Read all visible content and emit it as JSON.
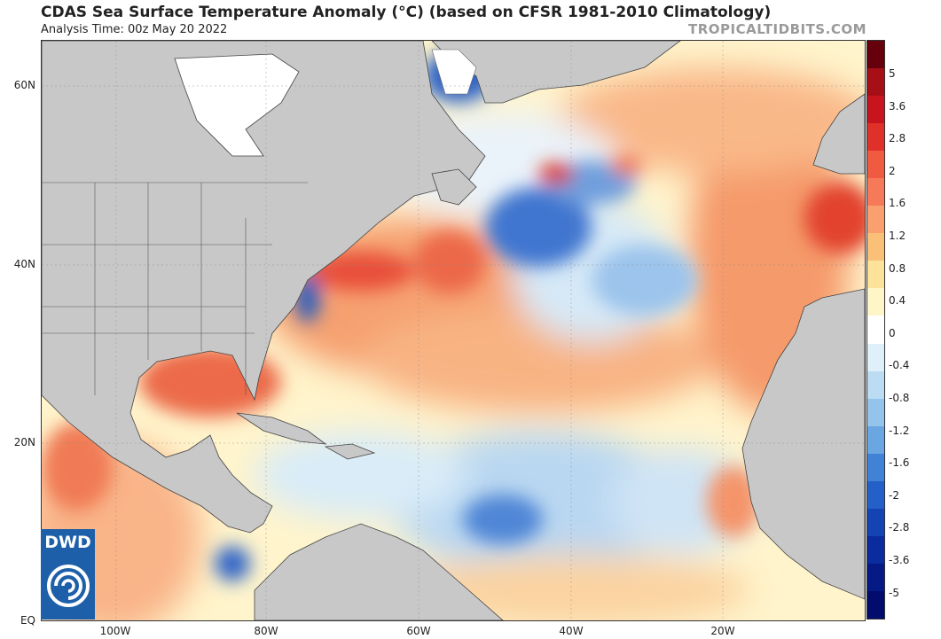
{
  "title": "CDAS Sea Surface Temperature Anomaly (°C) (based on CFSR 1981-2010 Climatology)",
  "subtitle": "Analysis Time: 00z May 20 2022",
  "brand": "TROPICALTIDBITS.COM",
  "logo": {
    "text": "DWD",
    "icon": "swirl-icon"
  },
  "lat_labels": [
    "60N",
    "40N",
    "20N",
    "EQ"
  ],
  "lon_labels": [
    "100W",
    "80W",
    "60W",
    "40W",
    "20W"
  ],
  "colorbar": {
    "labels": [
      "5",
      "3.6",
      "2.8",
      "2",
      "1.6",
      "1.2",
      "0.8",
      "0.4",
      "0",
      "-0.4",
      "-0.8",
      "-1.2",
      "-1.6",
      "-2",
      "-2.8",
      "-3.6",
      "-5"
    ],
    "colors": [
      "#67000d",
      "#a50f15",
      "#c8151d",
      "#e0302a",
      "#ef5a40",
      "#f67a5a",
      "#f9a06e",
      "#fbc078",
      "#fde29a",
      "#fff6c8",
      "#ffffff",
      "#dff0fb",
      "#bcdcf4",
      "#94c4ec",
      "#6aa6e2",
      "#4082d6",
      "#2460c8",
      "#1444b4",
      "#0a2c9e",
      "#061a86",
      "#020c6c"
    ]
  }
}
